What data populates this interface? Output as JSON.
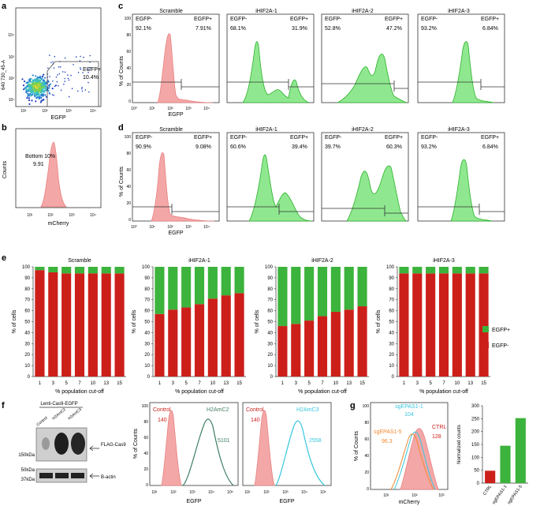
{
  "panel_labels": {
    "a": "a",
    "b": "b",
    "c": "c",
    "d": "d",
    "e": "e",
    "f": "f",
    "g": "g"
  },
  "colors": {
    "red": "#cc1f1a",
    "green": "#3cb33c",
    "pink": "#f4a7a7",
    "pink_line": "#e88080",
    "lightgreen": "#8fe88f",
    "green_line": "#2bb02b",
    "cyan": "#38c6dd",
    "orange": "#f08a2e",
    "darkgreen": "#3f7f62"
  },
  "panel_a": {
    "y_label": "640 730_45-A",
    "x_label": "EGFP",
    "gate_label": "EGFP+",
    "gate_value": "10.4%",
    "y_ticks": [
      "10⁴",
      "10³",
      "10²",
      "10¹"
    ],
    "x_ticks": [
      "10¹",
      "10²",
      "10³",
      "10⁴"
    ]
  },
  "panel_b": {
    "y_label": "Counts",
    "x_label": "mCherry",
    "gate_label": "Bottom 10%",
    "gate_value": "9.91",
    "x_ticks": [
      "10¹",
      "10²",
      "10³",
      "10⁴"
    ]
  },
  "histo_axes": {
    "y_label": "% of Counts",
    "x_label": "EGFP",
    "y_ticks": [
      "100",
      "80",
      "60",
      "40",
      "20",
      "0"
    ],
    "x_ticks": [
      "10⁰",
      "10¹",
      "10²",
      "10³",
      "10⁴"
    ],
    "neg_label": "EGFP-",
    "pos_label": "EGFP+"
  },
  "panel_c": [
    {
      "title": "Scramble",
      "neg": "92.1%",
      "pos": "7.91%"
    },
    {
      "title": "iHIF2A-1",
      "neg": "68.1%",
      "pos": "31.9%"
    },
    {
      "title": "iHIF2A-2",
      "neg": "52.8%",
      "pos": "47.2%"
    },
    {
      "title": "iHIF2A-3",
      "neg": "93.2%",
      "pos": "6.84%"
    }
  ],
  "panel_d": [
    {
      "title": "Scramble",
      "neg": "90.9%",
      "pos": "9.08%"
    },
    {
      "title": "iHIF2A-1",
      "neg": "60.6%",
      "pos": "39.4%"
    },
    {
      "title": "iHIF2A-2",
      "neg": "39.7%",
      "pos": "60.3%"
    },
    {
      "title": "iHIF2A-3",
      "neg": "93.2%",
      "pos": "6.84%"
    }
  ],
  "chart_data": [
    {
      "type": "bar",
      "stacked": true,
      "title": "Scramble",
      "xlabel": "% population cut-off",
      "ylabel": "% of cells",
      "ylim": [
        0,
        100
      ],
      "categories": [
        "1",
        "3",
        "5",
        "7",
        "10",
        "13",
        "15"
      ],
      "series": [
        {
          "name": "EGFP-",
          "values": [
            97,
            95,
            94,
            94,
            94,
            94,
            94
          ]
        },
        {
          "name": "EGFP+",
          "values": [
            3,
            5,
            6,
            6,
            6,
            6,
            6
          ]
        }
      ],
      "y_ticks": [
        "0",
        "10",
        "20",
        "30",
        "40",
        "50",
        "60",
        "70",
        "80",
        "90",
        "100"
      ]
    },
    {
      "type": "bar",
      "stacked": true,
      "title": "iHIF2A-1",
      "xlabel": "% population cut-off",
      "ylabel": "% of cells",
      "ylim": [
        0,
        100
      ],
      "categories": [
        "1",
        "3",
        "5",
        "7",
        "10",
        "13",
        "15"
      ],
      "series": [
        {
          "name": "EGFP-",
          "values": [
            57,
            61,
            63,
            66,
            71,
            74,
            76
          ]
        },
        {
          "name": "EGFP+",
          "values": [
            43,
            39,
            37,
            34,
            29,
            26,
            24
          ]
        }
      ],
      "y_ticks": [
        "0",
        "10",
        "20",
        "30",
        "40",
        "50",
        "60",
        "70",
        "80",
        "90",
        "100"
      ]
    },
    {
      "type": "bar",
      "stacked": true,
      "title": "iHIF2A-2",
      "xlabel": "% population cut-off",
      "ylabel": "% of cells",
      "ylim": [
        0,
        100
      ],
      "categories": [
        "1",
        "3",
        "5",
        "7",
        "10",
        "13",
        "15"
      ],
      "series": [
        {
          "name": "EGFP-",
          "values": [
            46,
            48,
            51,
            55,
            59,
            61,
            64
          ]
        },
        {
          "name": "EGFP+",
          "values": [
            54,
            52,
            49,
            45,
            41,
            39,
            36
          ]
        }
      ],
      "y_ticks": [
        "0",
        "10",
        "20",
        "30",
        "40",
        "50",
        "60",
        "70",
        "80",
        "90",
        "100"
      ]
    },
    {
      "type": "bar",
      "stacked": true,
      "title": "iHIF2A-3",
      "xlabel": "% population cut-off",
      "ylabel": "% of cells",
      "ylim": [
        0,
        100
      ],
      "categories": [
        "1",
        "3",
        "5",
        "7",
        "10",
        "13",
        "15"
      ],
      "series": [
        {
          "name": "EGFP-",
          "values": [
            94,
            94,
            94,
            94,
            94,
            94,
            94
          ]
        },
        {
          "name": "EGFP+",
          "values": [
            6,
            6,
            6,
            6,
            6,
            6,
            6
          ]
        }
      ],
      "y_ticks": [
        "0",
        "10",
        "20",
        "30",
        "40",
        "50",
        "60",
        "70",
        "80",
        "90",
        "100"
      ]
    },
    {
      "type": "bar",
      "title": "",
      "xlabel": "",
      "ylabel": "Normalized counts",
      "ylim": [
        0,
        300
      ],
      "categories": [
        "CTRL",
        "sgEPAS1-1",
        "sgEPAS1-5"
      ],
      "values": [
        48,
        145,
        252
      ],
      "bar_colors": [
        "#cc1f1a",
        "#3cb33c",
        "#3cb33c"
      ],
      "y_ticks": [
        "0",
        "50",
        "100",
        "150",
        "200",
        "250",
        "300"
      ]
    }
  ],
  "legend_e": {
    "pos": "EGFP+",
    "neg": "EGFP-"
  },
  "panel_f_blot": {
    "header": "Lenti-Cas9-EGFP",
    "lanes": [
      "Control",
      "H2AmC2",
      "H2AmC3"
    ],
    "markers": [
      "150kDa",
      "50kDa",
      "37kDa"
    ],
    "band_labels": [
      "FLAG-Cas9",
      "B-actin"
    ]
  },
  "panel_f_h1": {
    "control_label": "Control",
    "control_value": "140",
    "sample_label": "H2AmC2",
    "sample_value": "5101",
    "x_label": "EGFP",
    "y_label": "% of Counts",
    "y_ticks": [
      "100",
      "80",
      "60",
      "40",
      "20",
      "0"
    ],
    "x_ticks": [
      "10¹",
      "10²",
      "10³",
      "10⁴",
      "10⁵"
    ]
  },
  "panel_f_h2": {
    "control_label": "Control",
    "control_value": "140",
    "sample_label": "H2AmC3",
    "sample_value": "2558",
    "x_label": "EGFP",
    "x_ticks": [
      "10¹",
      "10²",
      "10³",
      "10⁴",
      "10⁵"
    ]
  },
  "panel_g_h": {
    "y_label": "% of Counts",
    "x_label": "mCherry",
    "x_ticks": [
      "10¹",
      "10²",
      "10³"
    ],
    "y_ticks": [
      "100",
      "80",
      "60",
      "40",
      "20",
      "0"
    ],
    "s1_label": "sgEPAS1-1",
    "s1_value": "104",
    "s5_label": "sgEPAS1-5",
    "s5_value": "96.3",
    "ctrl_label": "CTRL",
    "ctrl_value": "128"
  }
}
